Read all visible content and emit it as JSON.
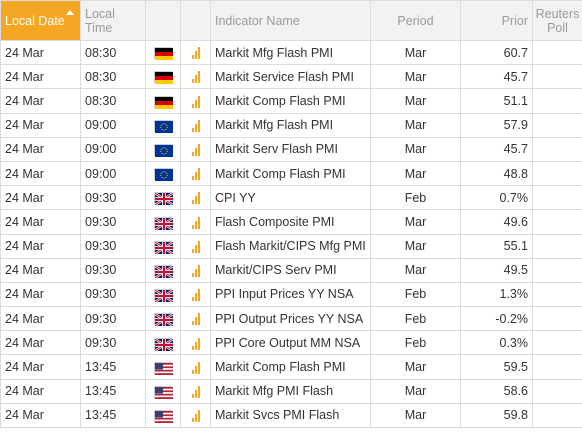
{
  "headers": {
    "local_date": "Local Date",
    "local_time": "Local Time",
    "indicator_name": "Indicator Name",
    "period": "Period",
    "prior": "Prior",
    "reuters_poll": "Reuters Poll"
  },
  "colors": {
    "accent": "#f5a623",
    "header_bg": "#f2f2f2",
    "border": "#dcdcdc"
  },
  "rows": [
    {
      "date": "24 Mar",
      "time": "08:30",
      "country": "germany-flag",
      "importance": "importance-bars-icon",
      "name": "Markit Mfg Flash PMI",
      "period": "Mar",
      "prior": "60.7",
      "poll": ""
    },
    {
      "date": "24 Mar",
      "time": "08:30",
      "country": "germany-flag",
      "importance": "importance-bars-icon",
      "name": "Markit Service Flash PMI",
      "period": "Mar",
      "prior": "45.7",
      "poll": ""
    },
    {
      "date": "24 Mar",
      "time": "08:30",
      "country": "germany-flag",
      "importance": "importance-bars-icon",
      "name": "Markit Comp Flash PMI",
      "period": "Mar",
      "prior": "51.1",
      "poll": ""
    },
    {
      "date": "24 Mar",
      "time": "09:00",
      "country": "eu-flag",
      "importance": "importance-bars-icon",
      "name": "Markit Mfg Flash PMI",
      "period": "Mar",
      "prior": "57.9",
      "poll": ""
    },
    {
      "date": "24 Mar",
      "time": "09:00",
      "country": "eu-flag",
      "importance": "importance-bars-icon",
      "name": "Markit Serv Flash PMI",
      "period": "Mar",
      "prior": "45.7",
      "poll": ""
    },
    {
      "date": "24 Mar",
      "time": "09:00",
      "country": "eu-flag",
      "importance": "importance-bars-icon",
      "name": "Markit Comp Flash PMI",
      "period": "Mar",
      "prior": "48.8",
      "poll": ""
    },
    {
      "date": "24 Mar",
      "time": "09:30",
      "country": "uk-flag",
      "importance": "importance-bars-icon",
      "name": "CPI YY",
      "period": "Feb",
      "prior": "0.7%",
      "poll": ""
    },
    {
      "date": "24 Mar",
      "time": "09:30",
      "country": "uk-flag",
      "importance": "importance-bars-icon",
      "name": "Flash Composite PMI",
      "period": "Mar",
      "prior": "49.6",
      "poll": ""
    },
    {
      "date": "24 Mar",
      "time": "09:30",
      "country": "uk-flag",
      "importance": "importance-bars-icon",
      "name": "Flash Markit/CIPS Mfg PMI",
      "period": "Mar",
      "prior": "55.1",
      "poll": ""
    },
    {
      "date": "24 Mar",
      "time": "09:30",
      "country": "uk-flag",
      "importance": "importance-bars-icon",
      "name": "Markit/CIPS Serv PMI",
      "period": "Mar",
      "prior": "49.5",
      "poll": ""
    },
    {
      "date": "24 Mar",
      "time": "09:30",
      "country": "uk-flag",
      "importance": "importance-bars-icon",
      "name": "PPI Input Prices YY NSA",
      "period": "Feb",
      "prior": "1.3%",
      "poll": ""
    },
    {
      "date": "24 Mar",
      "time": "09:30",
      "country": "uk-flag",
      "importance": "importance-bars-icon",
      "name": "PPI Output Prices YY NSA",
      "period": "Feb",
      "prior": "-0.2%",
      "poll": ""
    },
    {
      "date": "24 Mar",
      "time": "09:30",
      "country": "uk-flag",
      "importance": "importance-bars-icon",
      "name": "PPI Core Output MM NSA",
      "period": "Feb",
      "prior": "0.3%",
      "poll": ""
    },
    {
      "date": "24 Mar",
      "time": "13:45",
      "country": "us-flag",
      "importance": "importance-bars-icon",
      "name": "Markit Comp Flash PMI",
      "period": "Mar",
      "prior": "59.5",
      "poll": ""
    },
    {
      "date": "24 Mar",
      "time": "13:45",
      "country": "us-flag",
      "importance": "importance-bars-icon",
      "name": "Markit Mfg PMI Flash",
      "period": "Mar",
      "prior": "58.6",
      "poll": ""
    },
    {
      "date": "24 Mar",
      "time": "13:45",
      "country": "us-flag",
      "importance": "importance-bars-icon",
      "name": "Markit Svcs PMI Flash",
      "period": "Mar",
      "prior": "59.8",
      "poll": ""
    }
  ]
}
